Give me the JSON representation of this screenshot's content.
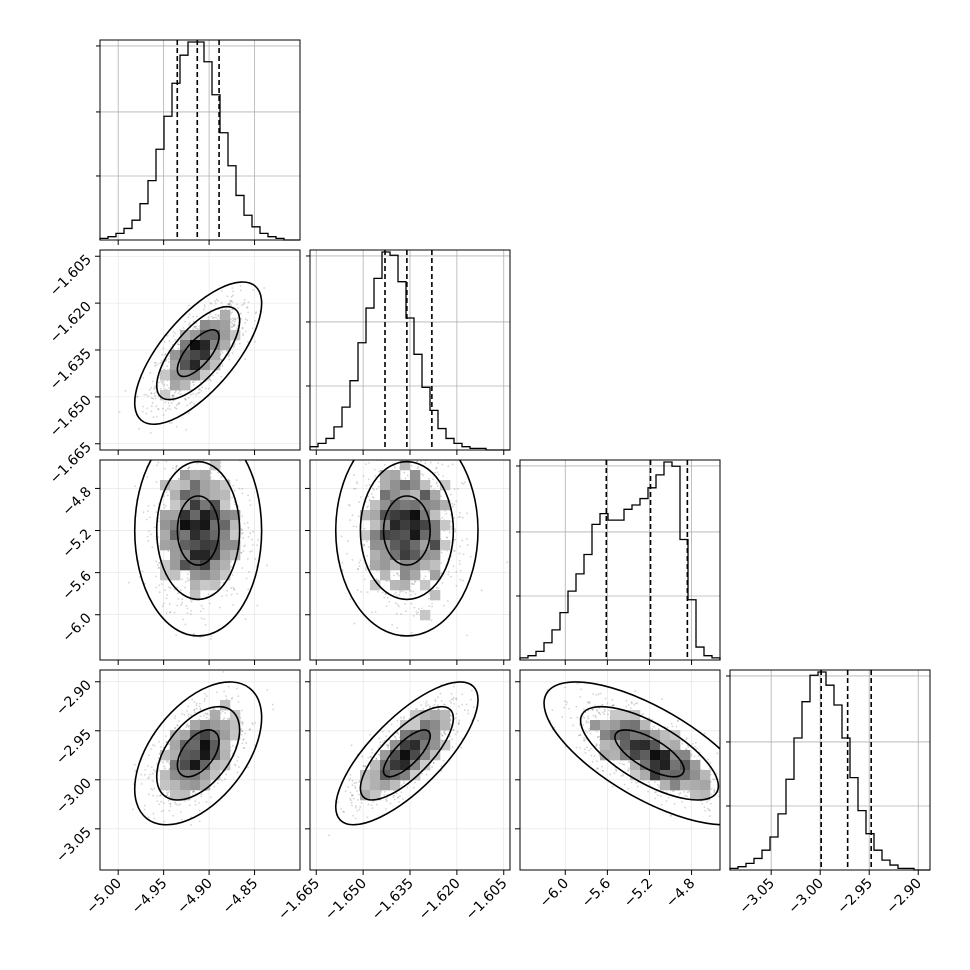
{
  "chart_data": {
    "type": "corner",
    "n_params": 4,
    "grid": true,
    "parameters": [
      {
        "range": [
          -5.02,
          -4.8
        ],
        "ticks": [
          -5.0,
          -4.95,
          -4.9,
          -4.85
        ],
        "tick_labels": [
          "−5.00",
          "−4.95",
          "−4.90",
          "−4.85"
        ],
        "quantiles": [
          -4.935,
          -4.913,
          -4.889
        ],
        "mean": -4.912,
        "sd": 0.023
      },
      {
        "range": [
          -1.667,
          -1.603
        ],
        "ticks": [
          -1.665,
          -1.65,
          -1.635,
          -1.62,
          -1.605
        ],
        "tick_labels": [
          "−1.665",
          "−1.650",
          "−1.635",
          "−1.620",
          "−1.605"
        ],
        "quantiles": [
          -1.643,
          -1.636,
          -1.628
        ],
        "mean": -1.636,
        "sd": 0.0075
      },
      {
        "range": [
          -6.43,
          -4.53
        ],
        "ticks": [
          -6.0,
          -5.6,
          -5.2,
          -4.8
        ],
        "tick_labels": [
          "−6.0",
          "−5.6",
          "−5.2",
          "−4.8"
        ],
        "quantiles": [
          -5.61,
          -5.19,
          -4.84
        ],
        "mean": -5.2,
        "sd": 0.33
      },
      {
        "range": [
          -3.092,
          -2.888
        ],
        "ticks": [
          -3.05,
          -3.0,
          -2.95,
          -2.9
        ],
        "tick_labels": [
          "−3.05",
          "−3.00",
          "−2.95",
          "−2.90"
        ],
        "quantiles": [
          -2.999,
          -2.972,
          -2.948
        ],
        "mean": -2.973,
        "sd": 0.024
      }
    ],
    "histograms": [
      [
        1,
        2,
        4,
        7,
        12,
        22,
        36,
        55,
        75,
        95,
        112,
        120,
        120,
        108,
        88,
        65,
        45,
        27,
        15,
        8,
        4,
        2,
        1,
        0,
        0
      ],
      [
        2,
        4,
        7,
        14,
        26,
        42,
        65,
        86,
        104,
        120,
        118,
        102,
        80,
        58,
        38,
        24,
        13,
        7,
        4,
        2,
        1,
        1,
        0,
        0,
        0
      ],
      [
        1,
        2,
        4,
        8,
        14,
        22,
        32,
        40,
        49,
        63,
        68,
        65,
        65,
        70,
        72,
        75,
        80,
        86,
        92,
        90,
        56,
        28,
        6,
        2,
        1
      ],
      [
        1,
        2,
        4,
        7,
        12,
        20,
        34,
        55,
        80,
        102,
        118,
        120,
        112,
        100,
        80,
        56,
        36,
        22,
        12,
        6,
        3,
        1,
        1,
        0,
        0
      ]
    ],
    "contour_levels": [
      0.39,
      0.86,
      0.99
    ],
    "pairs": [
      {
        "row": 1,
        "col": 0,
        "corr": 0.7
      },
      {
        "row": 2,
        "col": 0,
        "corr": 0.0
      },
      {
        "row": 2,
        "col": 1,
        "corr": 0.0
      },
      {
        "row": 3,
        "col": 0,
        "corr": 0.5
      },
      {
        "row": 3,
        "col": 1,
        "corr": 0.75
      },
      {
        "row": 3,
        "col": 2,
        "corr": -0.7
      }
    ]
  }
}
